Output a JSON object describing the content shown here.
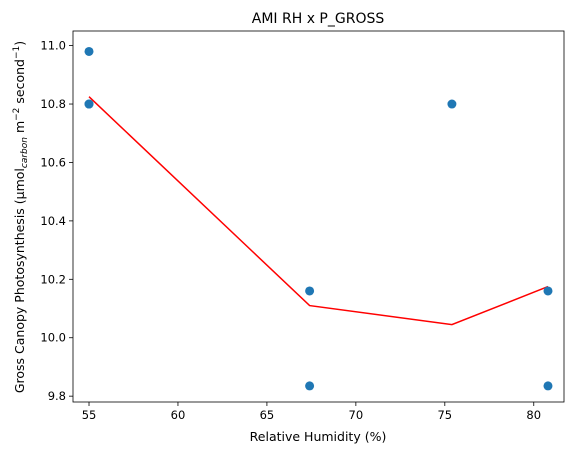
{
  "chart_data": {
    "type": "scatter",
    "title": "AMI RH x P_GROSS",
    "xlabel": "Relative Humidity (%)",
    "ylabel": {
      "prefix": "Gross Canopy Photosynthesis (µmol",
      "subscript": "carbon",
      "middle": " m",
      "sup1": "−2",
      "middle2": " second",
      "sup2": "−1",
      "suffix": ")"
    },
    "xlim": [
      54.1,
      81.7
    ],
    "ylim": [
      9.78,
      11.05
    ],
    "xticks": [
      55,
      60,
      65,
      70,
      75,
      80
    ],
    "xtick_labels": [
      "55",
      "60",
      "65",
      "70",
      "75",
      "80"
    ],
    "yticks": [
      9.8,
      10.0,
      10.2,
      10.4,
      10.6,
      10.8,
      11.0
    ],
    "ytick_labels": [
      "9.8",
      "10.0",
      "10.2",
      "10.4",
      "10.6",
      "10.8",
      "11.0"
    ],
    "grid": false,
    "series": [
      {
        "kind": "scatter",
        "color": "#1f77b4",
        "points": [
          {
            "x": 55.0,
            "y": 10.98
          },
          {
            "x": 55.0,
            "y": 10.8
          },
          {
            "x": 55.0,
            "y": 10.8
          },
          {
            "x": 67.4,
            "y": 10.16
          },
          {
            "x": 67.4,
            "y": 9.835
          },
          {
            "x": 75.4,
            "y": 10.8
          },
          {
            "x": 80.8,
            "y": 10.16
          },
          {
            "x": 80.8,
            "y": 9.835
          }
        ]
      },
      {
        "kind": "line",
        "color": "#ff0000",
        "points": [
          {
            "x": 55.0,
            "y": 10.825
          },
          {
            "x": 67.4,
            "y": 10.11
          },
          {
            "x": 75.4,
            "y": 10.045
          },
          {
            "x": 80.8,
            "y": 10.175
          }
        ]
      }
    ]
  }
}
